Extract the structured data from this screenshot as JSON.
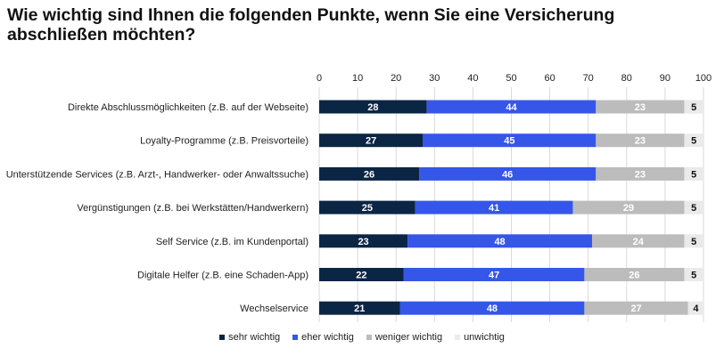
{
  "chart_data": {
    "type": "bar",
    "orientation": "horizontal",
    "stacked": true,
    "title": "Wie wichtig sind Ihnen die folgenden Punkte, wenn Sie eine Versicherung abschließen möchten?",
    "xlim": [
      0,
      100
    ],
    "xticks": [
      "0",
      "10",
      "20",
      "30",
      "40",
      "50",
      "60",
      "70",
      "80",
      "90",
      "100"
    ],
    "grid": true,
    "legend_position": "bottom",
    "categories": [
      "Direkte Abschlussmöglichkeiten (z.B. auf der Webseite)",
      "Loyalty-Programme (z.B. Preisvorteile)",
      "Unterstützende Services (z.B. Arzt-, Handwerker- oder Anwaltssuche)",
      "Vergünstigungen (z.B. bei Werkstätten/Handwerkern)",
      "Self Service (z.B. im Kundenportal)",
      "Digitale Helfer (z.B. eine Schaden-App)",
      "Wechselservice"
    ],
    "series": [
      {
        "name": "sehr wichtig",
        "color": "#0b2545",
        "values": [
          28,
          27,
          26,
          25,
          23,
          22,
          21
        ]
      },
      {
        "name": "eher wichtig",
        "color": "#3556e8",
        "values": [
          44,
          45,
          46,
          41,
          48,
          47,
          48
        ]
      },
      {
        "name": "weniger wichtig",
        "color": "#bcbcbc",
        "values": [
          23,
          23,
          23,
          29,
          24,
          26,
          27
        ]
      },
      {
        "name": "unwichtig",
        "color": "#eaeaea",
        "values": [
          5,
          5,
          5,
          5,
          5,
          5,
          4
        ]
      }
    ]
  }
}
